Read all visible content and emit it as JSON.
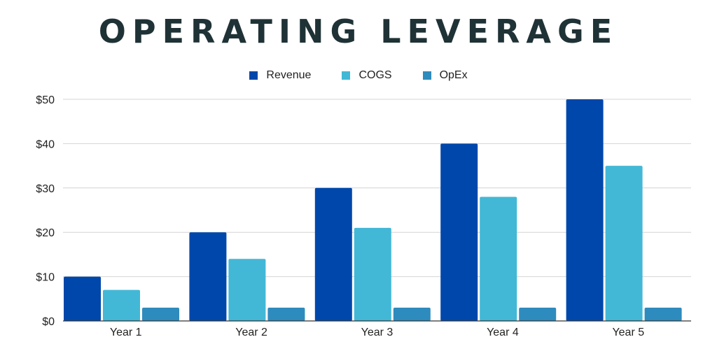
{
  "colors": {
    "title": "#1f3236",
    "grid": "#d4d4d4",
    "axis": "#333333"
  },
  "chart_data": {
    "type": "bar",
    "title": "OPERATING LEVERAGE",
    "xlabel": "",
    "ylabel": "",
    "categories": [
      "Year 1",
      "Year 2",
      "Year 3",
      "Year 4",
      "Year 5"
    ],
    "series": [
      {
        "name": "Revenue",
        "color": "#0047ab",
        "values": [
          10,
          20,
          30,
          40,
          50
        ]
      },
      {
        "name": "COGS",
        "color": "#42b8d6",
        "values": [
          7,
          14,
          21,
          28,
          35
        ]
      },
      {
        "name": "OpEx",
        "color": "#2e8bbd",
        "values": [
          3,
          3,
          3,
          3,
          3
        ]
      }
    ],
    "ylim": [
      0,
      50
    ],
    "yticks": [
      0,
      10,
      20,
      30,
      40,
      50
    ],
    "ytick_labels": [
      "$0",
      "$10",
      "$20",
      "$30",
      "$40",
      "$50"
    ],
    "grid": true,
    "legend_position": "top-center"
  }
}
